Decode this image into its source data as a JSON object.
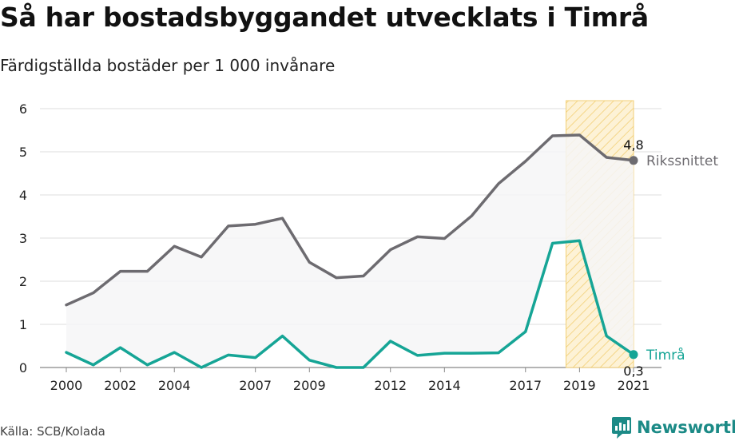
{
  "title": "Så har bostadsbyggandet utvecklats i Timrå",
  "subtitle": "Färdigställda bostäder per 1 000 invånare",
  "source": "Källa: SCB/Kolada",
  "brand": {
    "name": "Newsworthy",
    "icon": "newsworthy-logo-icon"
  },
  "colors": {
    "national": "#6d6b70",
    "local": "#16a596",
    "highlight_fill": "#fdf2d6",
    "highlight_stroke": "#f2cf75",
    "area_fill": "#f6f6f7",
    "grid": "#dcdcdc"
  },
  "chart_data": {
    "type": "line",
    "x": [
      2000,
      2001,
      2002,
      2003,
      2004,
      2005,
      2006,
      2007,
      2008,
      2009,
      2010,
      2011,
      2012,
      2013,
      2014,
      2015,
      2016,
      2017,
      2018,
      2019,
      2020,
      2021
    ],
    "x_ticks": [
      "2000",
      "2002",
      "2004",
      "2007",
      "2009",
      "2012",
      "2014",
      "2017",
      "2019",
      "2021"
    ],
    "y_ticks": [
      "0",
      "1",
      "2",
      "3",
      "4",
      "5",
      "6"
    ],
    "ylim": [
      0,
      6
    ],
    "xlim": [
      2000,
      2021
    ],
    "highlight_range": [
      2018.5,
      2021
    ],
    "grid": true,
    "series": [
      {
        "name": "Rikssnittet",
        "values": [
          1.45,
          1.73,
          2.23,
          2.23,
          2.81,
          2.56,
          3.28,
          3.32,
          3.46,
          2.44,
          2.08,
          2.12,
          2.73,
          3.03,
          2.99,
          3.51,
          4.26,
          4.78,
          5.37,
          5.39,
          4.87,
          4.8
        ],
        "end_label": "4,8"
      },
      {
        "name": "Timrå",
        "values": [
          0.35,
          0.06,
          0.46,
          0.06,
          0.35,
          0.0,
          0.29,
          0.23,
          0.73,
          0.17,
          0.0,
          0.0,
          0.61,
          0.28,
          0.33,
          0.33,
          0.34,
          0.83,
          2.88,
          2.94,
          0.73,
          0.3
        ],
        "end_label": "0,3"
      }
    ]
  }
}
